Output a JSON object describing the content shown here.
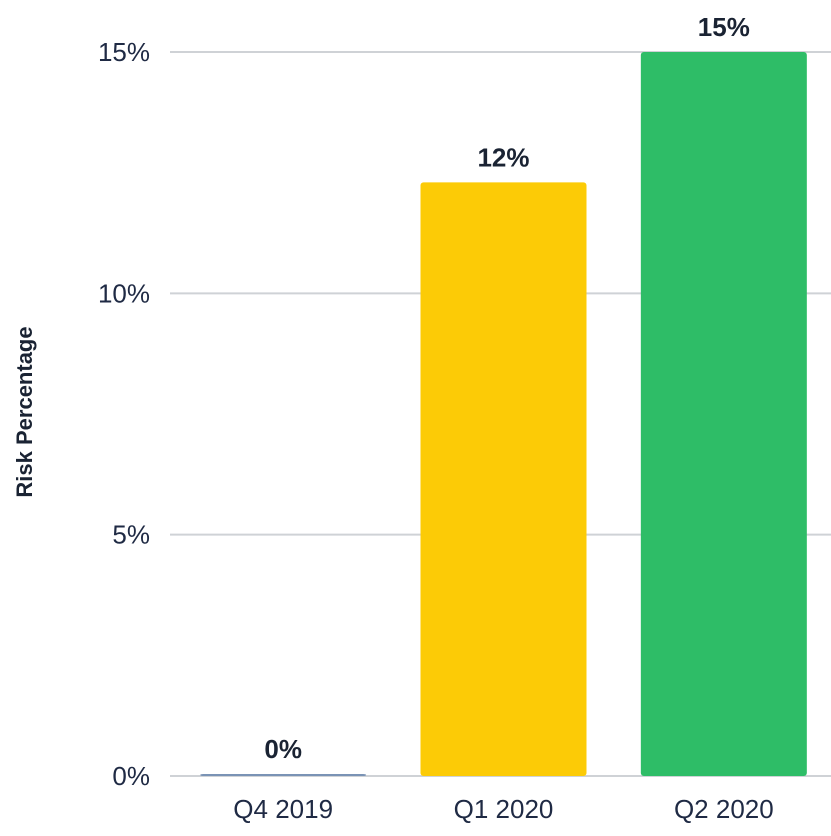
{
  "chart_data": {
    "type": "bar",
    "title": "",
    "xlabel": "",
    "ylabel": "Risk Percentage",
    "categories": [
      "Q4 2019",
      "Q1 2020",
      "Q2 2020"
    ],
    "values": [
      0,
      12.3,
      15
    ],
    "data_labels": [
      "0%",
      "12%",
      "15%"
    ],
    "bar_colors": [
      "#7a93b5",
      "#fccb06",
      "#2ebd67"
    ],
    "ylim": [
      0,
      15
    ],
    "yticks": [
      0,
      5,
      10,
      15
    ],
    "ytick_labels": [
      "0%",
      "5%",
      "10%",
      "15%"
    ],
    "grid": true,
    "legend": "none"
  }
}
